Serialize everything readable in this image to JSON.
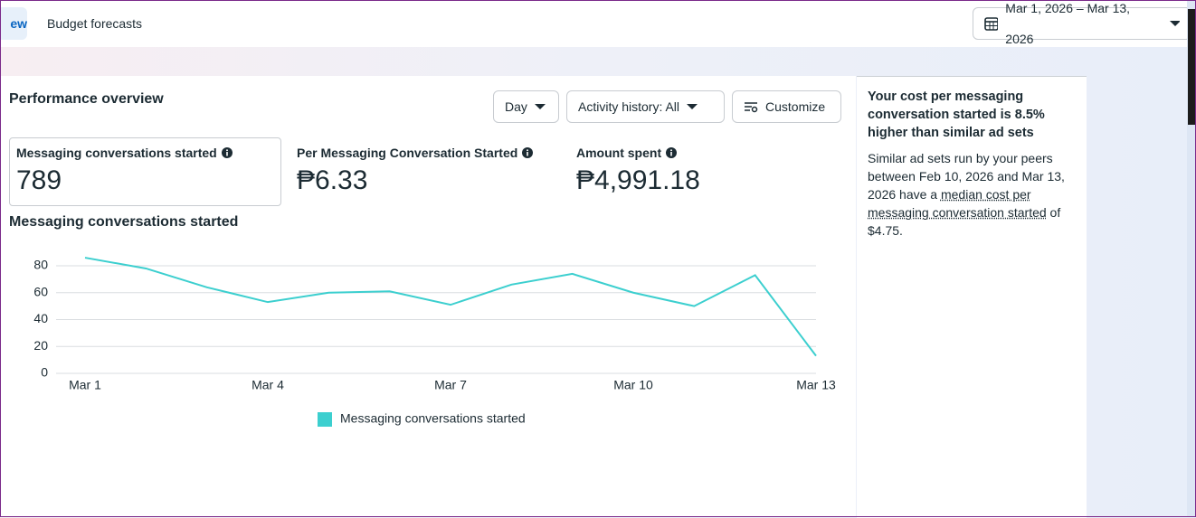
{
  "tabs": [
    "ew",
    "Budget forecasts"
  ],
  "date_range": "Mar 1, 2026 – Mar 13, 2026",
  "panel_title": "Performance overview",
  "controls": [
    "Day",
    "Activity history: All",
    "Customize"
  ],
  "metrics": [
    {
      "label": "Messaging conversations started",
      "value": "789"
    },
    {
      "label": "Per Messaging Conversation Started",
      "value": "₱6.33"
    },
    {
      "label": "Amount spent",
      "value": "₱4,991.18"
    }
  ],
  "chart_data": {
    "type": "line",
    "title": "Messaging conversations started",
    "categories": [
      "Mar 1",
      null,
      null,
      "Mar 4",
      null,
      null,
      "Mar 7",
      null,
      null,
      "Mar 10",
      null,
      null,
      "Mar 13"
    ],
    "series": [
      {
        "name": "Messaging conversations started",
        "color": "#3ccfcf",
        "values": [
          86,
          78,
          64,
          53,
          60,
          61,
          51,
          66,
          74,
          60,
          50,
          73,
          13
        ]
      }
    ],
    "ylim": [
      0,
      88
    ],
    "yticks": [
      0,
      20,
      40,
      60,
      80
    ],
    "grid": true,
    "legend": "bottom"
  },
  "insight": {
    "heading": "Your cost per messaging conversation started is 8.5% higher than similar ad sets",
    "body_start": "Similar ad sets run by your peers between Feb 10, 2026 and Mar 13, 2026 have a ",
    "body_link": "median cost per messaging conversation started",
    "body_end": " of $4.75."
  }
}
